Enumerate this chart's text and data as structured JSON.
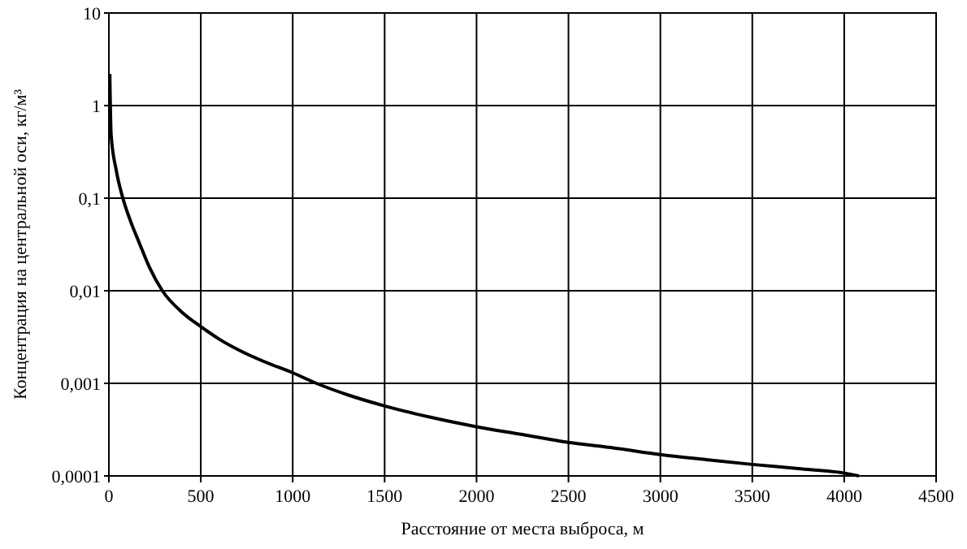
{
  "chart_data": {
    "type": "line",
    "xlabel": "Расстояние от места выброса, м",
    "ylabel": "Концентрация на центральной оси, кг/м³",
    "log": "y",
    "grid": true,
    "xlim": [
      0,
      4500
    ],
    "xticks": [
      0,
      500,
      1000,
      1500,
      2000,
      2500,
      3000,
      3500,
      4000,
      4500
    ],
    "ylim": [
      0.0001,
      10
    ],
    "yticks": [
      {
        "value": 0.0001,
        "label": "0,0001"
      },
      {
        "value": 0.001,
        "label": "0,001"
      },
      {
        "value": 0.01,
        "label": "0,01"
      },
      {
        "value": 0.1,
        "label": "0,1"
      },
      1,
      10
    ],
    "series": [
      {
        "color": "#000000",
        "x": [
          5,
          12,
          40,
          76,
          120,
          165,
          220,
          291,
          400,
          500,
          600,
          724,
          850,
          1000,
          1129,
          1300,
          1500,
          1750,
          2000,
          2250,
          2500,
          2750,
          3000,
          3250,
          3500,
          3750,
          4000,
          4080
        ],
        "values": [
          2.2,
          0.49,
          0.2,
          0.1,
          0.055,
          0.033,
          0.018,
          0.01,
          0.0058,
          0.0041,
          0.003,
          0.0022,
          0.0017,
          0.0013,
          0.001,
          0.00075,
          0.00057,
          0.00043,
          0.00034,
          0.00028,
          0.00023,
          0.0002,
          0.00017,
          0.00015,
          0.000133,
          0.00012,
          0.000107,
          0.0001
        ]
      }
    ]
  }
}
